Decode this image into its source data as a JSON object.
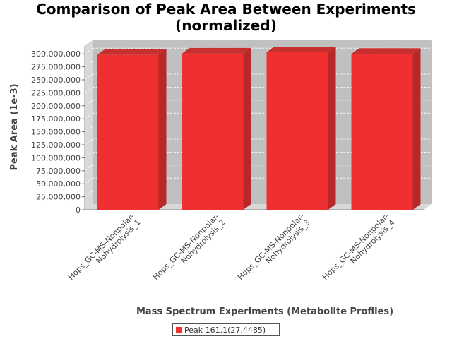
{
  "chart_data": {
    "type": "bar",
    "title": [
      "Comparison of Peak Area Between Experiments",
      "(normalized)"
    ],
    "xlabel": "Mass Spectrum Experiments (Metabolite Profiles)",
    "ylabel": "Peak Area (1e-3)",
    "ylim": [
      0,
      312500000
    ],
    "yticks": [
      0,
      25000000,
      50000000,
      75000000,
      100000000,
      125000000,
      150000000,
      175000000,
      200000000,
      225000000,
      250000000,
      275000000,
      300000000
    ],
    "ytick_labels": [
      "0",
      "25,000,000",
      "50,000,000",
      "75,000,000",
      "100,000,000",
      "125,000,000",
      "150,000,000",
      "175,000,000",
      "200,000,000",
      "225,000,000",
      "250,000,000",
      "275,000,000",
      "300,000,000"
    ],
    "categories": [
      [
        "Hops_GC-MS-Nonpolar-",
        "Nohydrolysis_1"
      ],
      [
        "Hops_GC-MS-Nonpolar-",
        "Nohydrolysis_2"
      ],
      [
        "Hops_GC-MS-Nonpolar-",
        "Nohydrolysis_3"
      ],
      [
        "Hops_GC-MS-Nonpolar-",
        "Nohydrolysis_4"
      ]
    ],
    "series": [
      {
        "name": "Peak 161.1(27.4485)",
        "values": [
          298000000,
          300500000,
          303000000,
          300000000
        ]
      }
    ],
    "grid": true,
    "legend_position": "bottom",
    "colors": {
      "bar": "#f03030",
      "bar_top": "#c83030",
      "bar_side": "#b82828",
      "plot_bg": "#c0c0c0",
      "wall": "#d8d8d8",
      "grid": "#ffffff"
    }
  }
}
